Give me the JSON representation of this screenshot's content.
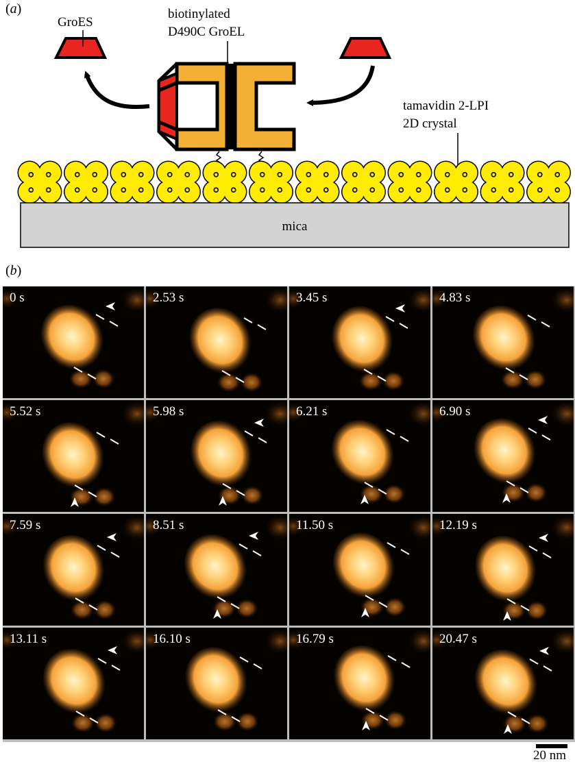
{
  "panel_a": {
    "label_prefix": "(",
    "label_letter": "a",
    "label_suffix": ")",
    "groes_label": "GroES",
    "groel_label_line1": "biotinylated",
    "groel_label_line2": "D490C GroEL",
    "tamavidin_label_line1": "tamavidin 2-LPI",
    "tamavidin_label_line2": "2D crystal",
    "substrate_label": "mica",
    "colors": {
      "groes": "#e8251f",
      "groel": "#f2b134",
      "tamavidin": "#ffec00",
      "mica": "#d3d3d3"
    }
  },
  "panel_b": {
    "label_prefix": "(",
    "label_letter": "b",
    "label_suffix": ")",
    "frames": [
      {
        "time": "0 s",
        "arrow_top": true,
        "arrow_bottom": false
      },
      {
        "time": "2.53 s",
        "arrow_top": false,
        "arrow_bottom": false
      },
      {
        "time": "3.45 s",
        "arrow_top": true,
        "arrow_bottom": false
      },
      {
        "time": "4.83 s",
        "arrow_top": false,
        "arrow_bottom": false
      },
      {
        "time": "5.52 s",
        "arrow_top": false,
        "arrow_bottom": true
      },
      {
        "time": "5.98 s",
        "arrow_top": true,
        "arrow_bottom": true
      },
      {
        "time": "6.21 s",
        "arrow_top": false,
        "arrow_bottom": true
      },
      {
        "time": "6.90 s",
        "arrow_top": true,
        "arrow_bottom": true
      },
      {
        "time": "7.59 s",
        "arrow_top": true,
        "arrow_bottom": false
      },
      {
        "time": "8.51 s",
        "arrow_top": true,
        "arrow_bottom": true
      },
      {
        "time": "11.50 s",
        "arrow_top": false,
        "arrow_bottom": true
      },
      {
        "time": "12.19 s",
        "arrow_top": true,
        "arrow_bottom": true
      },
      {
        "time": "13.11 s",
        "arrow_top": true,
        "arrow_bottom": false
      },
      {
        "time": "16.10 s",
        "arrow_top": false,
        "arrow_bottom": false
      },
      {
        "time": "16.79 s",
        "arrow_top": false,
        "arrow_bottom": true
      },
      {
        "time": "20.47 s",
        "arrow_top": true,
        "arrow_bottom": true
      }
    ],
    "scale_bar_label": "20 nm",
    "colors": {
      "background": "#050300",
      "particle_core": "#fff4c8",
      "particle_mid": "#f5a23a",
      "particle_edge": "#8a4a10"
    }
  }
}
